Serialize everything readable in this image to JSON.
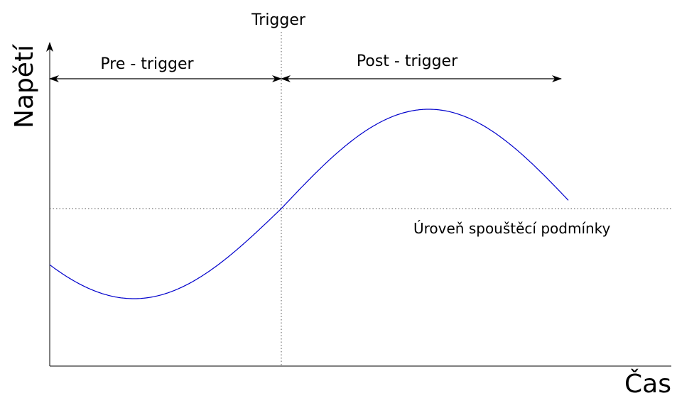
{
  "labels": {
    "trigger": "Trigger",
    "pre_trigger": "Pre - trigger",
    "post_trigger": "Post - trigger",
    "y_axis": "Napětí",
    "x_axis": "Čas",
    "level": "Úroveň spouštěcí podmínky"
  }
}
